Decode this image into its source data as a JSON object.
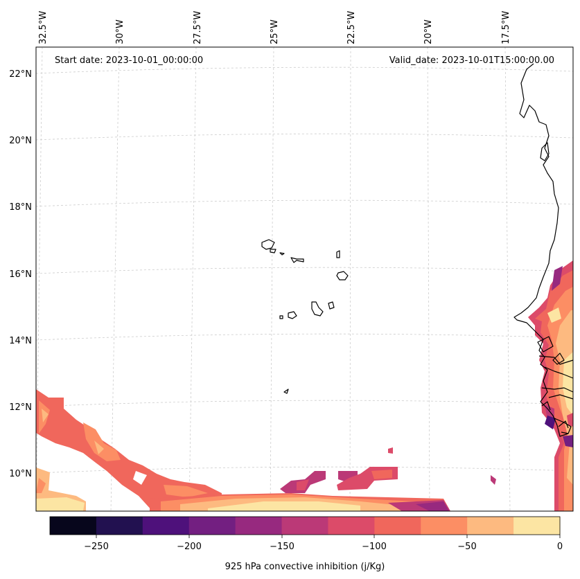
{
  "header": {
    "start_date": "Start date: 2023-10-01_00:00:00",
    "valid_date": "Valid_date: 2023-10-01T15:00:00.00"
  },
  "map": {
    "longitude_labels": [
      "32.5°W",
      "30°W",
      "27.5°W",
      "25°W",
      "22.5°W",
      "20°W",
      "17.5°W"
    ],
    "latitude_labels": [
      "22°N",
      "20°N",
      "18°N",
      "16°N",
      "14°N",
      "12°N",
      "10°N"
    ]
  },
  "colorbar": {
    "label": "925 hPa convective inhibition (j/Kg)",
    "tick_labels": [
      "−250",
      "−200",
      "−150",
      "−100",
      "−50",
      "0"
    ],
    "levels": [
      -275,
      -250,
      -225,
      -200,
      -175,
      -150,
      -125,
      -100,
      -75,
      -50,
      -25,
      0
    ],
    "colors": [
      "#07061c",
      "#221150",
      "#4e117b",
      "#731f81",
      "#97297f",
      "#bb3977",
      "#dc4b69",
      "#f0675c",
      "#fc8e64",
      "#fdba80",
      "#fce5a3"
    ]
  },
  "palette": {
    "coast": "#000000",
    "grid": "#cccccc"
  }
}
